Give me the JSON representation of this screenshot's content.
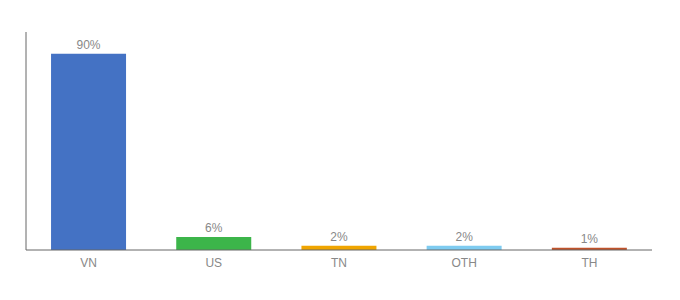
{
  "chart_data": {
    "type": "bar",
    "categories": [
      "VN",
      "US",
      "TN",
      "OTH",
      "TH"
    ],
    "values": [
      90,
      6,
      2,
      2,
      1
    ],
    "value_labels": [
      "90%",
      "6%",
      "2%",
      "2%",
      "1%"
    ],
    "colors": [
      "#4472c4",
      "#3cb54a",
      "#f0a500",
      "#7ecbf0",
      "#c0522a"
    ],
    "ylim": [
      0,
      100
    ],
    "grid": false,
    "data_labels": true,
    "tick_labels": "x"
  }
}
